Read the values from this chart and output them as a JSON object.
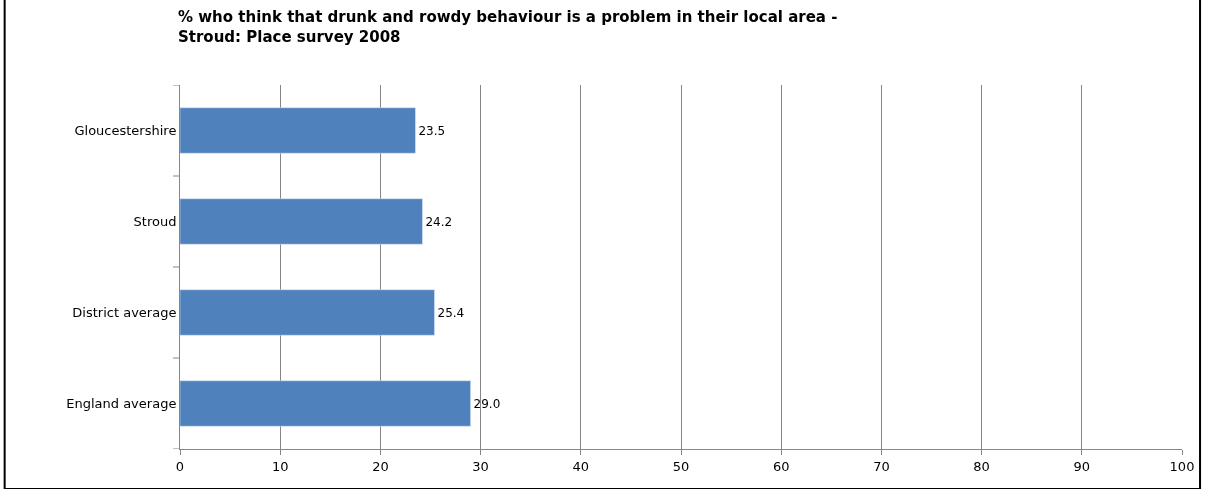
{
  "chart_data": {
    "type": "bar",
    "orientation": "horizontal",
    "title": "% who think that drunk and rowdy behaviour is a problem in their local area -\nStroud: Place survey 2008",
    "categories": [
      "Gloucestershire",
      "Stroud",
      "District average",
      "England average"
    ],
    "values": [
      23.5,
      24.2,
      25.4,
      29.0
    ],
    "value_labels": [
      "23.5",
      "24.2",
      "25.4",
      "29.0"
    ],
    "color": "#4f81bd",
    "xlim": [
      0,
      100
    ],
    "xticks": [
      0,
      10,
      20,
      30,
      40,
      50,
      60,
      70,
      80,
      90,
      100
    ],
    "grid": "x"
  }
}
